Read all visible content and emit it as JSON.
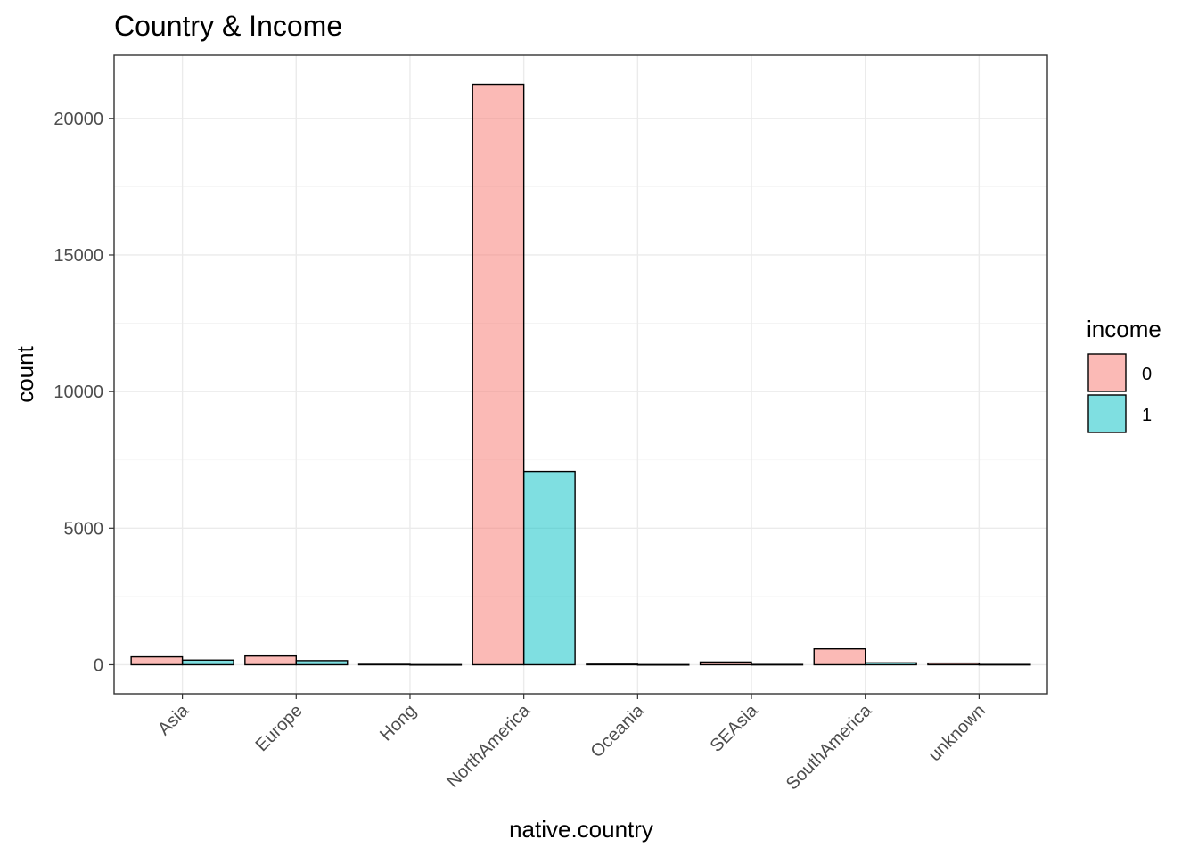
{
  "chart_data": {
    "type": "bar",
    "title": "Country & Income",
    "xlabel": "native.country",
    "ylabel": "count",
    "categories": [
      "Asia",
      "Europe",
      "Hong",
      "NorthAmerica",
      "Oceania",
      "SEAsia",
      "SouthAmerica",
      "unknown"
    ],
    "series": [
      {
        "name": "0",
        "color": "#F8766D",
        "values": [
          290,
          320,
          15,
          21250,
          20,
          100,
          580,
          60
        ]
      },
      {
        "name": "1",
        "color": "#00BFC4",
        "values": [
          170,
          150,
          5,
          7080,
          5,
          10,
          70,
          10
        ]
      }
    ],
    "y_ticks": [
      0,
      5000,
      10000,
      15000,
      20000
    ],
    "ylim": [
      -1062,
      22312
    ],
    "legend": {
      "title": "income",
      "placement": "right"
    },
    "grid": true
  }
}
